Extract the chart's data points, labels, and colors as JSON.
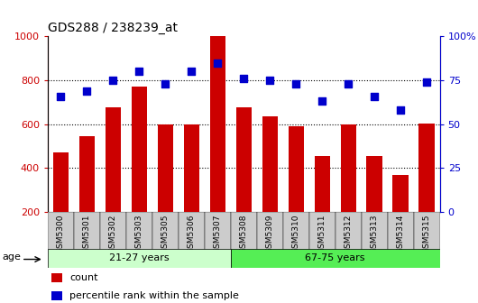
{
  "title": "GDS288 / 238239_at",
  "categories": [
    "GSM5300",
    "GSM5301",
    "GSM5302",
    "GSM5303",
    "GSM5305",
    "GSM5306",
    "GSM5307",
    "GSM5308",
    "GSM5309",
    "GSM5310",
    "GSM5311",
    "GSM5312",
    "GSM5313",
    "GSM5314",
    "GSM5315"
  ],
  "bar_values": [
    470,
    545,
    675,
    770,
    600,
    600,
    1000,
    675,
    635,
    590,
    455,
    600,
    455,
    370,
    605
  ],
  "scatter_values_pct": [
    66,
    69,
    75,
    80,
    73,
    80,
    85,
    76,
    75,
    73,
    63,
    73,
    66,
    58,
    74
  ],
  "bar_color": "#cc0000",
  "scatter_color": "#0000cc",
  "ylim_left": [
    200,
    1000
  ],
  "yticks_left": [
    200,
    400,
    600,
    800,
    1000
  ],
  "yticklabels_left": [
    "200",
    "400",
    "600",
    "800",
    "1000"
  ],
  "yticks_right_pct": [
    0,
    25,
    50,
    75,
    100
  ],
  "yticklabels_right": [
    "0",
    "25",
    "50",
    "75",
    "100%"
  ],
  "group1_label": "21-27 years",
  "group2_label": "67-75 years",
  "group1_count": 7,
  "group2_count": 8,
  "age_label": "age",
  "legend_count": "count",
  "legend_percentile": "percentile rank within the sample",
  "background_color": "#ffffff",
  "group_bg1": "#ccffcc",
  "group_bg2": "#55ee55",
  "xtick_bg": "#cccccc",
  "bar_width": 0.6,
  "scatter_size": 30
}
